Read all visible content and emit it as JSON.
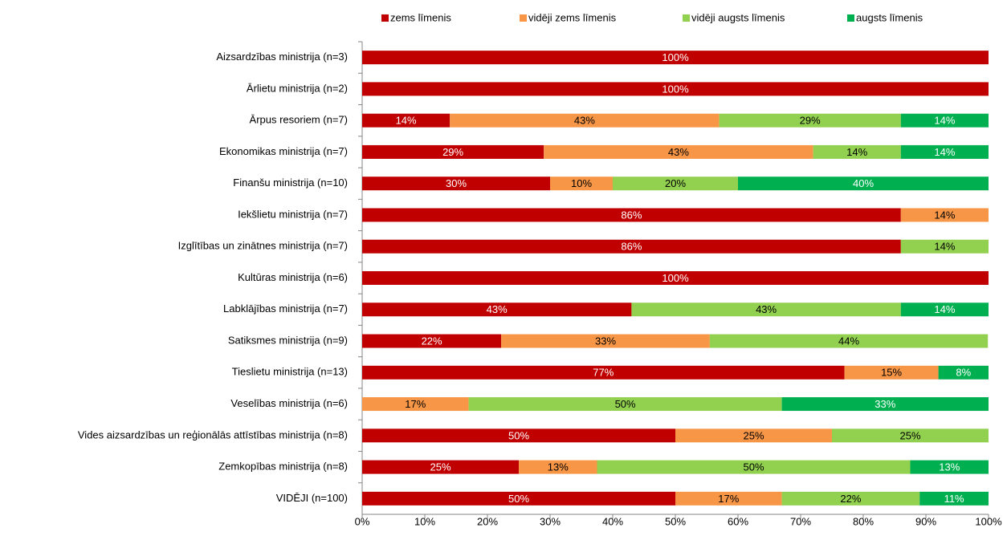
{
  "chart_data": {
    "type": "stacked-bar-horizontal",
    "categories": [
      "Aizsardzības ministrija  (n=3)",
      "Ārlietu ministrija (n=2)",
      "Ārpus resoriem (n=7)",
      "Ekonomikas ministrija  (n=7)",
      "Finanšu ministrija  (n=10)",
      "Iekšlietu ministrija (n=7)",
      "Izglītības un zinātnes ministrija  (n=7)",
      "Kultūras ministrija (n=6)",
      "Labklājības ministrija  (n=7)",
      "Satiksmes ministrija  (n=9)",
      "Tieslietu ministrija (n=13)",
      "Veselības ministrija  (n=6)",
      "Vides aizsardzības un reģionālās attīstības  ministrija  (n=8)",
      "Zemkopības ministrija  (n=8)",
      "VIDĒJI (n=100)"
    ],
    "series": [
      {
        "name": "zems līmenis",
        "color": "#c00000",
        "label_color": "#ffffff",
        "values": [
          100,
          100,
          14,
          29,
          30,
          86,
          86,
          100,
          43,
          22.2,
          77,
          null,
          50,
          25,
          50
        ],
        "value_labels": [
          "100%",
          "100%",
          "14%",
          "29%",
          "30%",
          "86%",
          "86%",
          "100%",
          "43%",
          "22%",
          "77%",
          null,
          "50%",
          "25%",
          "50%"
        ]
      },
      {
        "name": "vidēji zems līmenis",
        "color": "#f79646",
        "label_color": "#000000",
        "values": [
          null,
          null,
          43,
          43,
          10,
          14,
          null,
          null,
          null,
          33.3,
          15,
          17,
          25,
          12.5,
          17
        ],
        "value_labels": [
          null,
          null,
          "43%",
          "43%",
          "10%",
          "14%",
          null,
          null,
          null,
          "33%",
          "15%",
          "17%",
          "25%",
          "13%",
          "17%"
        ]
      },
      {
        "name": "vidēji augsts līmenis",
        "color": "#92d050",
        "label_color": "#000000",
        "values": [
          null,
          null,
          29,
          14,
          20,
          null,
          14,
          null,
          43,
          44.4,
          null,
          50,
          25,
          50,
          22
        ],
        "value_labels": [
          null,
          null,
          "29%",
          "14%",
          "20%",
          null,
          "14%",
          null,
          "43%",
          "44%",
          null,
          "50%",
          "25%",
          "50%",
          "22%"
        ]
      },
      {
        "name": "augsts līmenis",
        "color": "#00b050",
        "label_color": "#ffffff",
        "values": [
          null,
          null,
          14,
          14,
          40,
          null,
          null,
          null,
          14,
          null,
          8,
          33,
          null,
          12.5,
          11
        ],
        "value_labels": [
          null,
          null,
          "14%",
          "14%",
          "40%",
          null,
          null,
          null,
          "14%",
          null,
          "8%",
          "33%",
          null,
          "13%",
          "11%"
        ]
      }
    ],
    "xlim": [
      0,
      100
    ],
    "xticks": [
      {
        "value": 0,
        "label": "0%"
      },
      {
        "value": 10,
        "label": "10%"
      },
      {
        "value": 20,
        "label": "20%"
      },
      {
        "value": 30,
        "label": "30%"
      },
      {
        "value": 40,
        "label": "40%"
      },
      {
        "value": 50,
        "label": "50%"
      },
      {
        "value": 60,
        "label": "60%"
      },
      {
        "value": 70,
        "label": "70%"
      },
      {
        "value": 80,
        "label": "80%"
      },
      {
        "value": 90,
        "label": "90%"
      },
      {
        "value": 100,
        "label": "100%"
      }
    ],
    "legend": "top"
  }
}
